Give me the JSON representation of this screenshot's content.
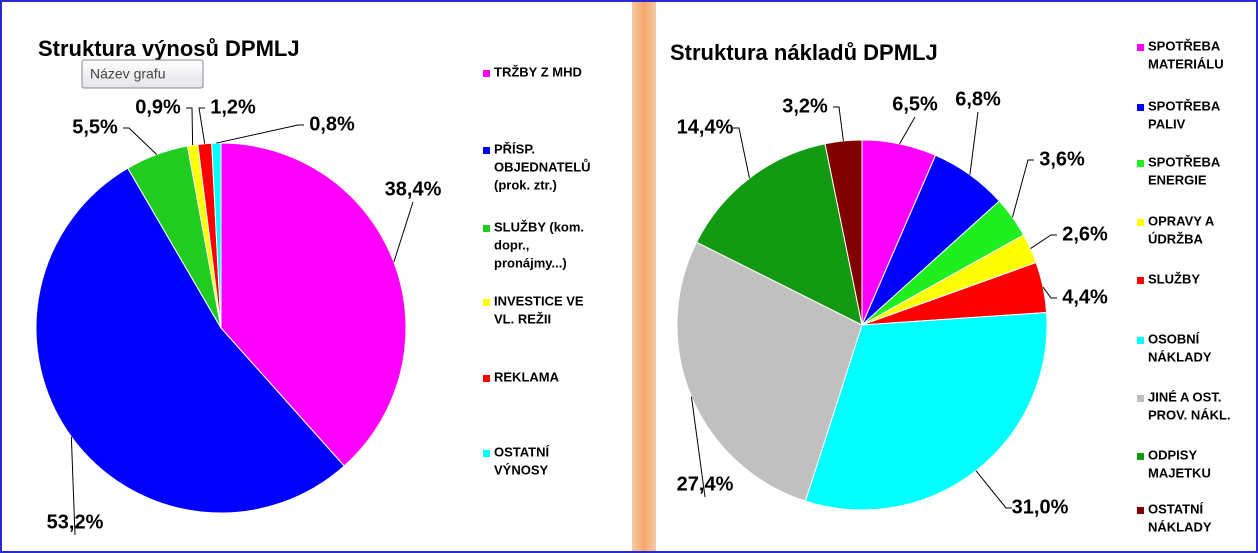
{
  "tooltip": "Název grafu",
  "chart_data": [
    {
      "type": "pie",
      "title": "Struktura výnosů DPMLJ",
      "categories": [
        [
          "TRŽBY Z MHD"
        ],
        [
          "PŘÍSP.",
          "OBJEDNATELŮ",
          "(prok. ztr.)"
        ],
        [
          "SLUŽBY (kom.",
          "dopr.,",
          "pronájmy...)"
        ],
        [
          "INVESTICE VE",
          "VL. REŽII"
        ],
        [
          "REKLAMA"
        ],
        [
          "OSTATNÍ",
          "VÝNOSY"
        ]
      ],
      "values": [
        38.4,
        53.2,
        5.5,
        0.9,
        1.2,
        0.8
      ],
      "value_labels": [
        "38,4%",
        "53,2%",
        "5,5%",
        "0,9%",
        "1,2%",
        "0,8%"
      ],
      "colors": [
        "#ff00ff",
        "#0000ff",
        "#1fcc1f",
        "#ffff00",
        "#ff0000",
        "#00ffff"
      ]
    },
    {
      "type": "pie",
      "title": "Struktura nákladů DPMLJ",
      "categories": [
        [
          "SPOTŘEBA",
          "MATERIÁLU"
        ],
        [
          "SPOTŘEBA",
          "PALIV"
        ],
        [
          "SPOTŘEBA",
          "ENERGIE"
        ],
        [
          "OPRAVY A",
          "ÚDRŽBA"
        ],
        [
          "SLUŽBY"
        ],
        [
          "OSOBNÍ",
          "NÁKLADY"
        ],
        [
          "JINÉ A OST.",
          "PROV. NÁKL."
        ],
        [
          "ODPISY",
          "MAJETKU"
        ],
        [
          "OSTATNÍ",
          "NÁKLADY"
        ]
      ],
      "values": [
        6.5,
        6.8,
        3.6,
        2.6,
        4.4,
        31.0,
        27.4,
        14.4,
        3.2
      ],
      "value_labels": [
        "6,5%",
        "6,8%",
        "3,6%",
        "2,6%",
        "4,4%",
        "31,0%",
        "27,4%",
        "14,4%",
        "3,2%"
      ],
      "colors": [
        "#ff00ff",
        "#0000ff",
        "#1fee1f",
        "#ffff00",
        "#ff0000",
        "#00ffff",
        "#c0c0c0",
        "#139a13",
        "#800000"
      ]
    }
  ]
}
